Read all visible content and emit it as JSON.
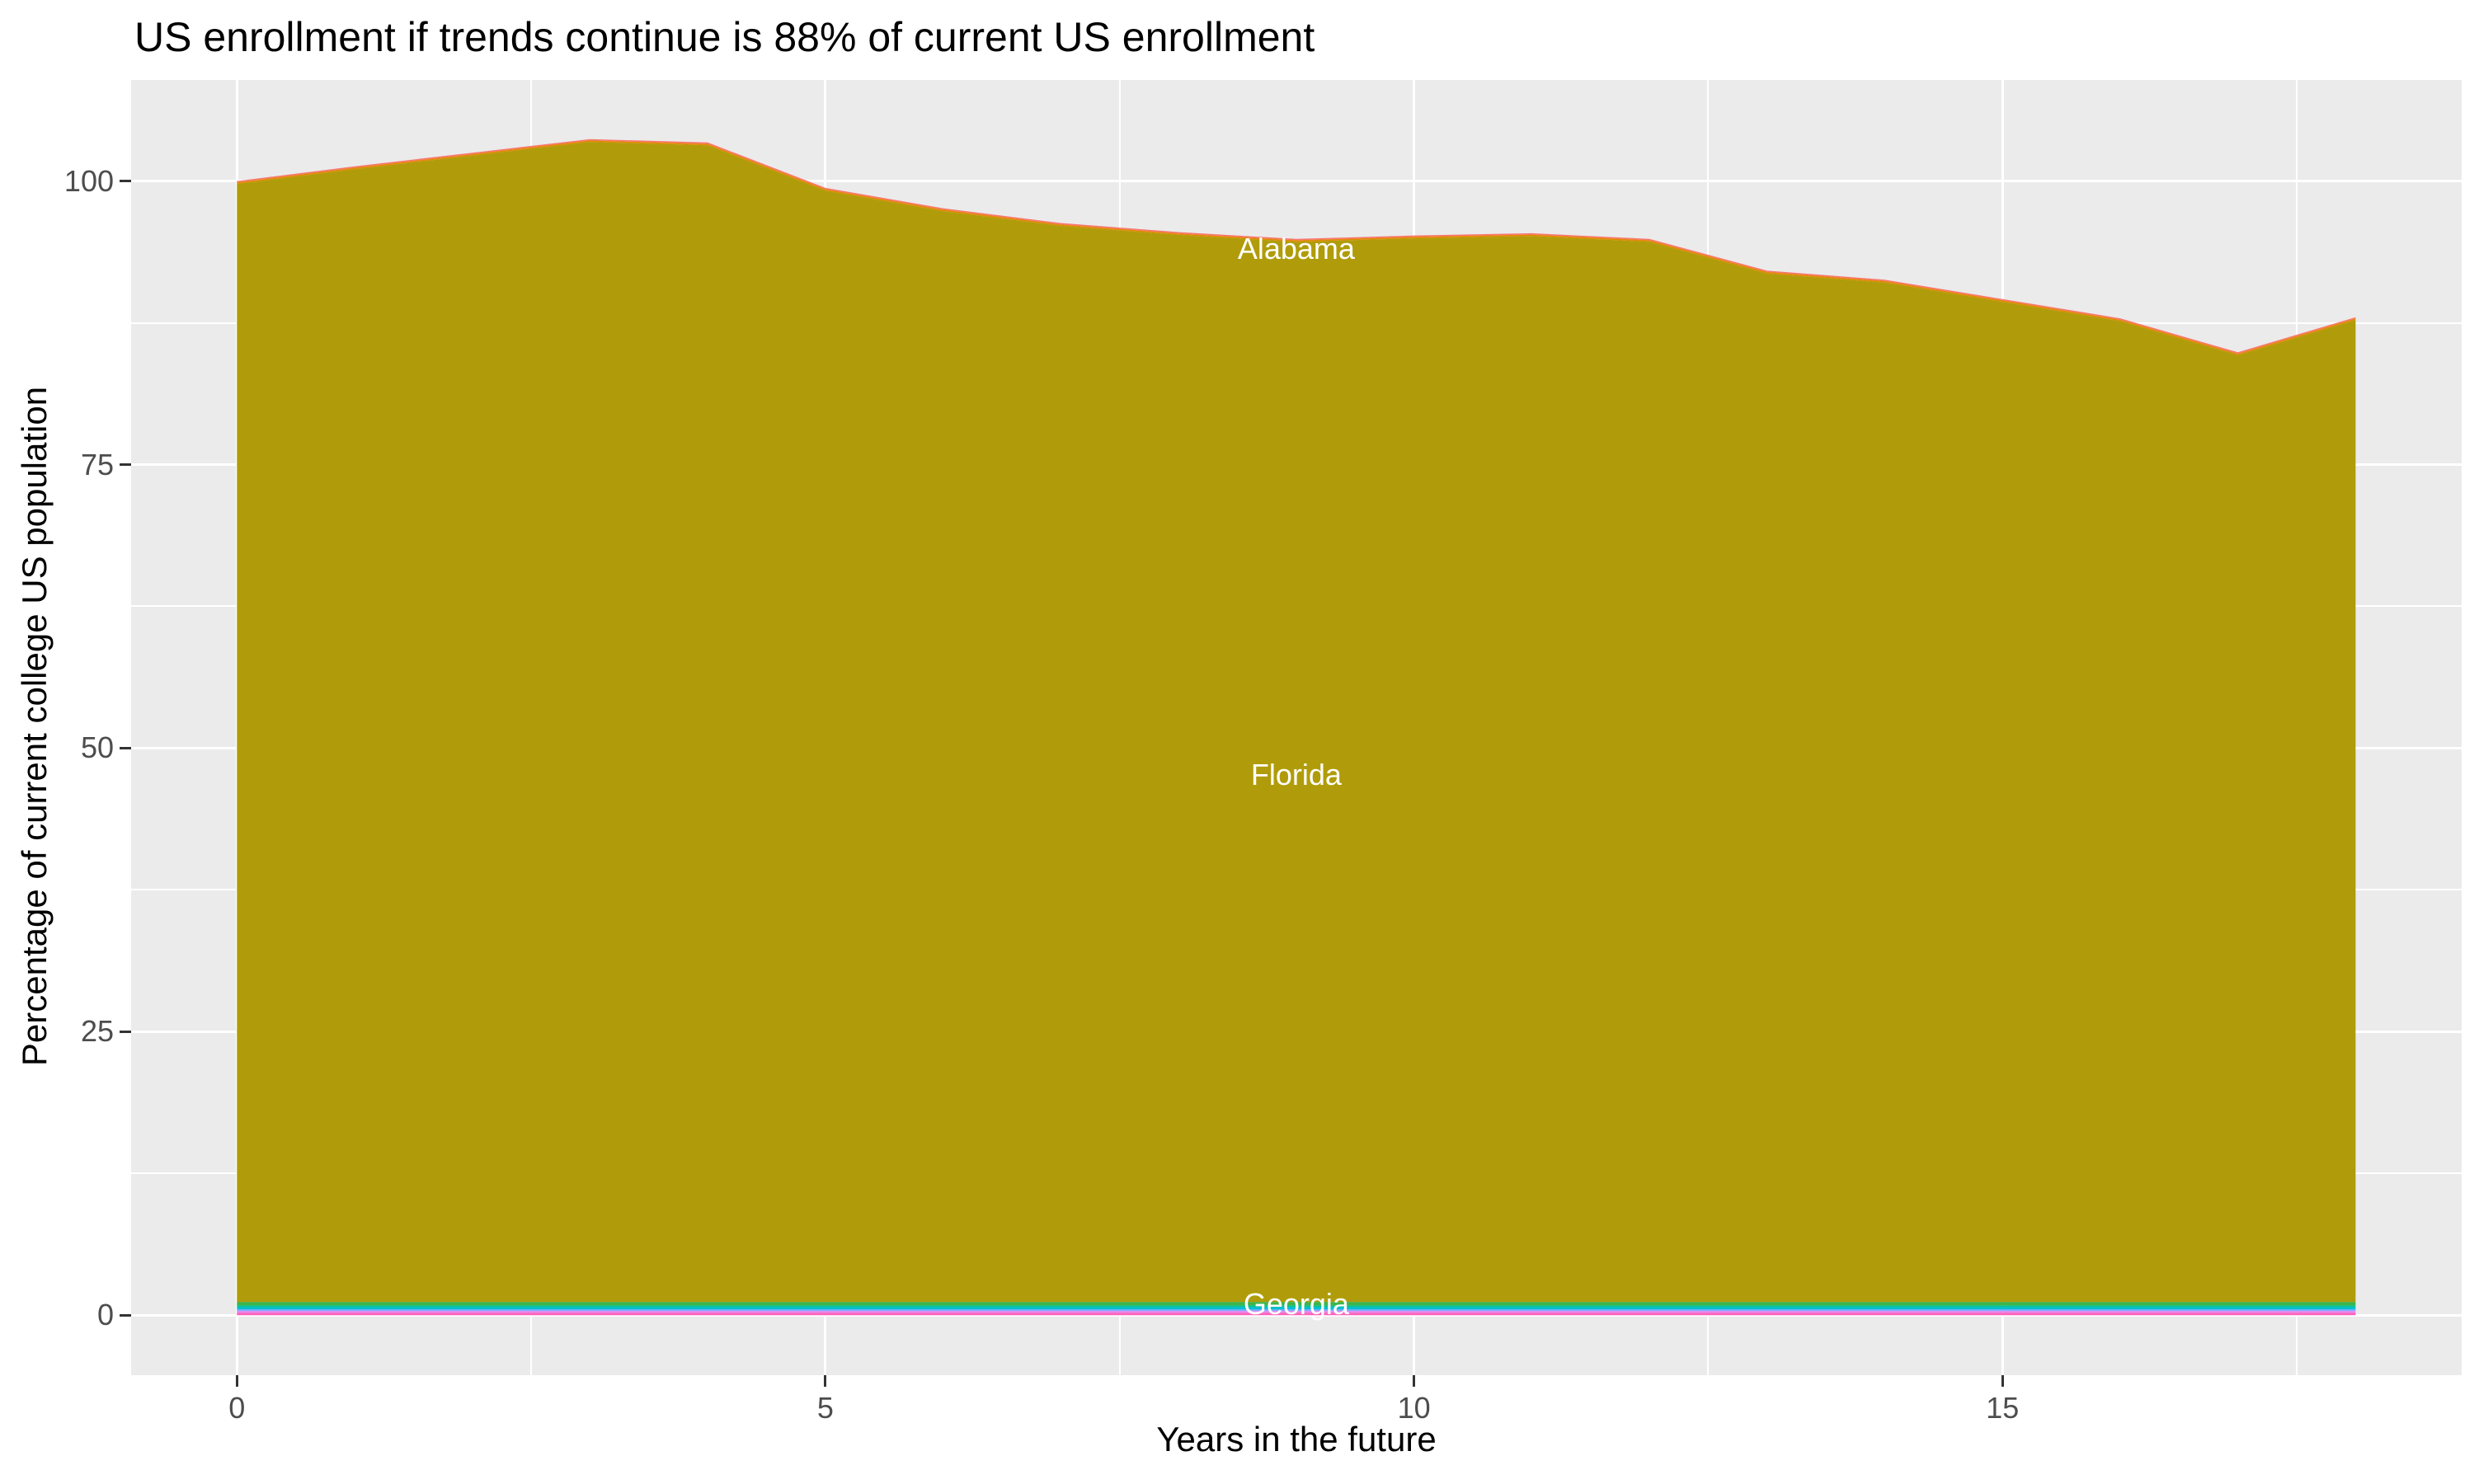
{
  "title": "US enrollment if trends continue is 88% of current US enrollment",
  "x_axis": {
    "label": "Years in the future",
    "major_ticks": [
      0,
      5,
      10,
      15
    ],
    "minor_ticks": [
      2.5,
      7.5,
      12.5,
      17.5
    ],
    "range": [
      -0.9,
      18.9
    ]
  },
  "y_axis": {
    "label": "Percentage of current college US population",
    "major_ticks": [
      100,
      75,
      50,
      25,
      0
    ],
    "minor_ticks": [
      87.5,
      62.5,
      37.5,
      12.5
    ],
    "range": [
      -5.2,
      108.9
    ]
  },
  "panel": {
    "background": "#EBEBEB",
    "gridline_color": "#FFFFFF"
  },
  "chart_data": {
    "type": "area",
    "stacked": true,
    "title": "US enrollment if trends continue is 88% of current US enrollment",
    "xlabel": "Years in the future",
    "ylabel": "Percentage of current college US population",
    "xlim": [
      -0.9,
      18.9
    ],
    "ylim": [
      -5.2,
      108.9
    ],
    "grid": "white major and minor gridlines on gray panel",
    "legend_position": "none",
    "x": [
      0,
      1,
      2,
      3,
      4,
      5,
      6,
      7,
      8,
      9,
      10,
      11,
      12,
      13,
      14,
      15,
      16,
      17,
      18
    ],
    "stack_total_pct": [
      100.0,
      101.3,
      102.5,
      103.7,
      103.4,
      99.4,
      97.6,
      96.3,
      95.5,
      94.9,
      95.2,
      95.4,
      94.9,
      92.1,
      91.3,
      89.6,
      87.9,
      84.9,
      88.0
    ],
    "series_bottom_to_top": [
      {
        "name": "state-band-magenta",
        "color": "#FF62BC",
        "thickness_pct": 0.23
      },
      {
        "name": "state-band-violet",
        "color": "#DE8CF0",
        "thickness_pct": 0.16
      },
      {
        "name": "state-band-blue",
        "color": "#6FA8FF",
        "thickness_pct": 0.13
      },
      {
        "name": "state-band-cyan",
        "color": "#00BDD4",
        "thickness_pct": 0.2
      },
      {
        "name": "state-band-teal",
        "color": "#00C08C",
        "thickness_pct": 0.16
      },
      {
        "name": "Georgia",
        "color": "#3EB449",
        "thickness_pct": 0.3
      },
      {
        "name": "Florida",
        "color": "#B09C0A",
        "thickness_pct": "remainder"
      },
      {
        "name": "state-band-orange",
        "color": "#E18900",
        "thickness_pct": 0.13
      },
      {
        "name": "Alabama",
        "color": "#F8766D",
        "thickness_pct": 0.12
      }
    ],
    "annotations": [
      {
        "text": "Alabama",
        "x": 9,
        "y": 94.0,
        "color": "#FFFFFF"
      },
      {
        "text": "Florida",
        "x": 9,
        "y": 47.6,
        "color": "#FFFFFF"
      },
      {
        "text": "Georgia",
        "x": 9,
        "y": 0.95,
        "color": "#FFFFFF"
      }
    ],
    "end_value_pct": 88,
    "start_value_pct": 100
  }
}
